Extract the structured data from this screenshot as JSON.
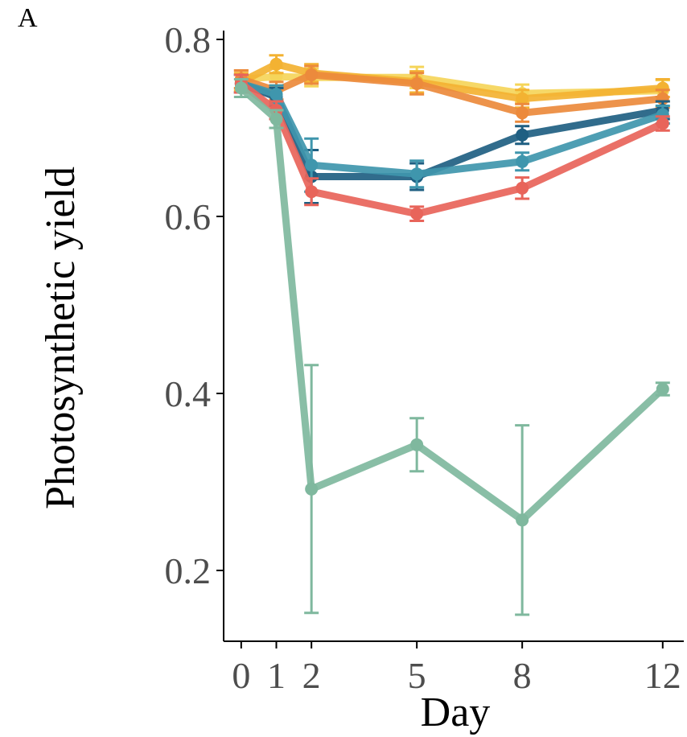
{
  "panel_label": "A",
  "chart_data": {
    "type": "line",
    "title": "",
    "xlabel": "Day",
    "ylabel": "Photosynthetic yield",
    "x": [
      0,
      1,
      2,
      5,
      8,
      12
    ],
    "xticks": [
      "0",
      "1",
      "2",
      "5",
      "8",
      "12"
    ],
    "yticks": [
      "0.2",
      "0.4",
      "0.6",
      "0.8"
    ],
    "xlim": [
      -0.5,
      12.6
    ],
    "ylim": [
      0.12,
      0.81
    ],
    "grid": false,
    "legend": "none",
    "series": [
      {
        "color": "#f5d55a",
        "values": [
          0.755,
          0.758,
          0.757,
          0.757,
          0.739,
          0.742
        ],
        "err": [
          0.01,
          0.01,
          0.01,
          0.012,
          0.01,
          0.012
        ]
      },
      {
        "color": "#f3b232",
        "values": [
          0.752,
          0.772,
          0.762,
          0.752,
          0.733,
          0.745
        ],
        "err": [
          0.01,
          0.01,
          0.01,
          0.012,
          0.01,
          0.01
        ]
      },
      {
        "color": "#ec8a3c",
        "values": [
          0.755,
          0.742,
          0.76,
          0.75,
          0.717,
          0.733
        ],
        "err": [
          0.01,
          0.01,
          0.01,
          0.012,
          0.01,
          0.01
        ]
      },
      {
        "color": "#1f5f82",
        "values": [
          0.75,
          0.735,
          0.645,
          0.645,
          0.692,
          0.72
        ],
        "err": [
          0.01,
          0.01,
          0.03,
          0.015,
          0.01,
          0.01
        ]
      },
      {
        "color": "#3f96ad",
        "values": [
          0.75,
          0.738,
          0.658,
          0.648,
          0.662,
          0.715
        ],
        "err": [
          0.01,
          0.01,
          0.03,
          0.015,
          0.01,
          0.01
        ]
      },
      {
        "color": "#e8645a",
        "values": [
          0.75,
          0.72,
          0.628,
          0.603,
          0.632,
          0.705
        ],
        "err": [
          0.01,
          0.01,
          0.015,
          0.008,
          0.012,
          0.008
        ]
      },
      {
        "color": "#7fb89e",
        "values": [
          0.745,
          0.71,
          0.292,
          0.342,
          0.257,
          0.405
        ],
        "err": [
          0.01,
          0.01,
          0.14,
          0.03,
          0.107,
          0.007
        ]
      }
    ]
  }
}
